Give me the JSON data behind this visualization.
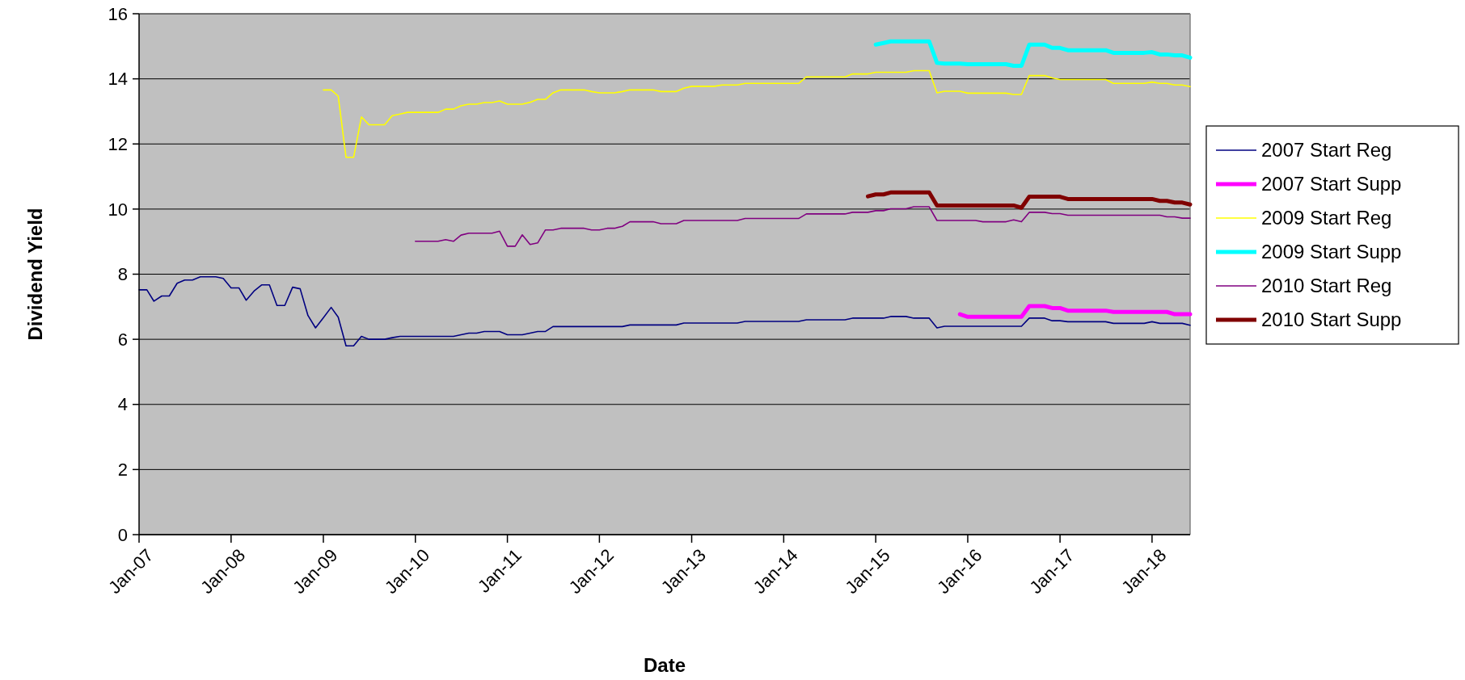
{
  "chart_data": {
    "type": "line",
    "xlabel": "Date",
    "ylabel": "Dividend Yield",
    "x": [
      "2007-01",
      "2007-02",
      "2007-03",
      "2007-04",
      "2007-05",
      "2007-06",
      "2007-07",
      "2007-08",
      "2007-09",
      "2007-10",
      "2007-11",
      "2007-12",
      "2008-01",
      "2008-02",
      "2008-03",
      "2008-04",
      "2008-05",
      "2008-06",
      "2008-07",
      "2008-08",
      "2008-09",
      "2008-10",
      "2008-11",
      "2008-12",
      "2009-01",
      "2009-02",
      "2009-03",
      "2009-04",
      "2009-05",
      "2009-06",
      "2009-07",
      "2009-08",
      "2009-09",
      "2009-10",
      "2009-11",
      "2009-12",
      "2010-01",
      "2010-02",
      "2010-03",
      "2010-04",
      "2010-05",
      "2010-06",
      "2010-07",
      "2010-08",
      "2010-09",
      "2010-10",
      "2010-11",
      "2010-12",
      "2011-01",
      "2011-02",
      "2011-03",
      "2011-04",
      "2011-05",
      "2011-06",
      "2011-07",
      "2011-08",
      "2011-09",
      "2011-10",
      "2011-11",
      "2011-12",
      "2012-01",
      "2012-02",
      "2012-03",
      "2012-04",
      "2012-05",
      "2012-06",
      "2012-07",
      "2012-08",
      "2012-09",
      "2012-10",
      "2012-11",
      "2012-12",
      "2013-01",
      "2013-02",
      "2013-03",
      "2013-04",
      "2013-05",
      "2013-06",
      "2013-07",
      "2013-08",
      "2013-09",
      "2013-10",
      "2013-11",
      "2013-12",
      "2014-01",
      "2014-02",
      "2014-03",
      "2014-04",
      "2014-05",
      "2014-06",
      "2014-07",
      "2014-08",
      "2014-09",
      "2014-10",
      "2014-11",
      "2014-12",
      "2015-01",
      "2015-02",
      "2015-03",
      "2015-04",
      "2015-05",
      "2015-06",
      "2015-07",
      "2015-08",
      "2015-09",
      "2015-10",
      "2015-11",
      "2015-12",
      "2016-01",
      "2016-02",
      "2016-03",
      "2016-04",
      "2016-05",
      "2016-06",
      "2016-07",
      "2016-08",
      "2016-09",
      "2016-10",
      "2016-11",
      "2016-12",
      "2017-01",
      "2017-02",
      "2017-03",
      "2017-04",
      "2017-05",
      "2017-06",
      "2017-07",
      "2017-08",
      "2017-09",
      "2017-10",
      "2017-11",
      "2017-12",
      "2018-01",
      "2018-02",
      "2018-03",
      "2018-04",
      "2018-05",
      "2018-06"
    ],
    "series": [
      {
        "name": "2007 Start Reg",
        "color": "#000080",
        "values": [
          7.52,
          7.52,
          7.17,
          7.33,
          7.33,
          7.72,
          7.82,
          7.82,
          7.92,
          7.92,
          7.92,
          7.87,
          7.58,
          7.58,
          7.2,
          7.48,
          7.67,
          7.67,
          7.04,
          7.04,
          7.6,
          7.55,
          6.73,
          6.35,
          6.66,
          6.98,
          6.68,
          5.8,
          5.8,
          6.09,
          6.0,
          6.0,
          6.0,
          6.05,
          6.09,
          6.09,
          6.09,
          6.09,
          6.09,
          6.09,
          6.09,
          6.09,
          6.14,
          6.19,
          6.19,
          6.24,
          6.24,
          6.24,
          6.14,
          6.14,
          6.14,
          6.19,
          6.24,
          6.24,
          6.39,
          6.39,
          6.39,
          6.39,
          6.39,
          6.39,
          6.39,
          6.39,
          6.39,
          6.39,
          6.44,
          6.44,
          6.44,
          6.44,
          6.44,
          6.44,
          6.44,
          6.5,
          6.5,
          6.5,
          6.5,
          6.5,
          6.5,
          6.5,
          6.5,
          6.55,
          6.55,
          6.55,
          6.55,
          6.55,
          6.55,
          6.55,
          6.55,
          6.6,
          6.6,
          6.6,
          6.6,
          6.6,
          6.6,
          6.65,
          6.65,
          6.65,
          6.65,
          6.65,
          6.7,
          6.7,
          6.7,
          6.65,
          6.65,
          6.65,
          6.35,
          6.4,
          6.4,
          6.4,
          6.4,
          6.4,
          6.4,
          6.4,
          6.4,
          6.4,
          6.4,
          6.4,
          6.65,
          6.65,
          6.65,
          6.57,
          6.57,
          6.54,
          6.54,
          6.54,
          6.54,
          6.54,
          6.54,
          6.49,
          6.49,
          6.49,
          6.49,
          6.49,
          6.54,
          6.49,
          6.49,
          6.49,
          6.49,
          6.43
        ]
      },
      {
        "name": "2007 Start Supp",
        "color": "#ff00ff",
        "values": [
          null,
          null,
          null,
          null,
          null,
          null,
          null,
          null,
          null,
          null,
          null,
          null,
          null,
          null,
          null,
          null,
          null,
          null,
          null,
          null,
          null,
          null,
          null,
          null,
          null,
          null,
          null,
          null,
          null,
          null,
          null,
          null,
          null,
          null,
          null,
          null,
          null,
          null,
          null,
          null,
          null,
          null,
          null,
          null,
          null,
          null,
          null,
          null,
          null,
          null,
          null,
          null,
          null,
          null,
          null,
          null,
          null,
          null,
          null,
          null,
          null,
          null,
          null,
          null,
          null,
          null,
          null,
          null,
          null,
          null,
          null,
          null,
          null,
          null,
          null,
          null,
          null,
          null,
          null,
          null,
          null,
          null,
          null,
          null,
          null,
          null,
          null,
          null,
          null,
          null,
          null,
          null,
          null,
          null,
          null,
          null,
          null,
          null,
          null,
          null,
          null,
          null,
          null,
          null,
          null,
          null,
          null,
          6.77,
          6.69,
          6.69,
          6.69,
          6.69,
          6.69,
          6.69,
          6.69,
          6.69,
          7.02,
          7.02,
          7.02,
          6.96,
          6.96,
          6.88,
          6.88,
          6.88,
          6.88,
          6.88,
          6.88,
          6.84,
          6.84,
          6.84,
          6.84,
          6.84,
          6.84,
          6.84,
          6.84,
          6.77,
          6.77,
          6.77
        ]
      },
      {
        "name": "2009 Start Reg",
        "color": "#ffff00",
        "values": [
          null,
          null,
          null,
          null,
          null,
          null,
          null,
          null,
          null,
          null,
          null,
          null,
          null,
          null,
          null,
          null,
          null,
          null,
          null,
          null,
          null,
          null,
          null,
          null,
          13.66,
          13.66,
          13.47,
          11.59,
          11.59,
          12.83,
          12.59,
          12.59,
          12.59,
          12.87,
          12.92,
          12.97,
          12.97,
          12.97,
          12.97,
          12.97,
          13.07,
          13.07,
          13.17,
          13.22,
          13.22,
          13.27,
          13.27,
          13.32,
          13.22,
          13.22,
          13.22,
          13.28,
          13.37,
          13.37,
          13.57,
          13.66,
          13.66,
          13.66,
          13.66,
          13.61,
          13.57,
          13.57,
          13.57,
          13.61,
          13.66,
          13.66,
          13.66,
          13.66,
          13.61,
          13.61,
          13.61,
          13.71,
          13.77,
          13.77,
          13.77,
          13.77,
          13.81,
          13.81,
          13.81,
          13.86,
          13.86,
          13.86,
          13.86,
          13.86,
          13.86,
          13.86,
          13.86,
          14.06,
          14.06,
          14.06,
          14.06,
          14.06,
          14.06,
          14.15,
          14.15,
          14.15,
          14.2,
          14.2,
          14.2,
          14.2,
          14.2,
          14.25,
          14.25,
          14.25,
          13.57,
          13.62,
          13.62,
          13.62,
          13.56,
          13.56,
          13.56,
          13.56,
          13.56,
          13.56,
          13.52,
          13.52,
          14.1,
          14.1,
          14.1,
          14.03,
          13.98,
          13.98,
          13.98,
          13.98,
          13.98,
          13.98,
          13.98,
          13.86,
          13.86,
          13.86,
          13.86,
          13.86,
          13.9,
          13.86,
          13.86,
          13.81,
          13.81,
          13.76
        ]
      },
      {
        "name": "2009 Start Supp",
        "color": "#00ffff",
        "values": [
          null,
          null,
          null,
          null,
          null,
          null,
          null,
          null,
          null,
          null,
          null,
          null,
          null,
          null,
          null,
          null,
          null,
          null,
          null,
          null,
          null,
          null,
          null,
          null,
          null,
          null,
          null,
          null,
          null,
          null,
          null,
          null,
          null,
          null,
          null,
          null,
          null,
          null,
          null,
          null,
          null,
          null,
          null,
          null,
          null,
          null,
          null,
          null,
          null,
          null,
          null,
          null,
          null,
          null,
          null,
          null,
          null,
          null,
          null,
          null,
          null,
          null,
          null,
          null,
          null,
          null,
          null,
          null,
          null,
          null,
          null,
          null,
          null,
          null,
          null,
          null,
          null,
          null,
          null,
          null,
          null,
          null,
          null,
          null,
          null,
          null,
          null,
          null,
          null,
          null,
          null,
          null,
          null,
          null,
          null,
          null,
          15.05,
          15.1,
          15.15,
          15.15,
          15.15,
          15.15,
          15.15,
          15.15,
          14.49,
          14.47,
          14.47,
          14.47,
          14.45,
          14.45,
          14.45,
          14.45,
          14.45,
          14.45,
          14.4,
          14.4,
          15.05,
          15.05,
          15.05,
          14.95,
          14.95,
          14.88,
          14.88,
          14.88,
          14.88,
          14.88,
          14.88,
          14.8,
          14.8,
          14.8,
          14.8,
          14.8,
          14.82,
          14.75,
          14.75,
          14.72,
          14.72,
          14.65
        ]
      },
      {
        "name": "2010 Start Reg",
        "color": "#800080",
        "values": [
          null,
          null,
          null,
          null,
          null,
          null,
          null,
          null,
          null,
          null,
          null,
          null,
          null,
          null,
          null,
          null,
          null,
          null,
          null,
          null,
          null,
          null,
          null,
          null,
          null,
          null,
          null,
          null,
          null,
          null,
          null,
          null,
          null,
          null,
          null,
          null,
          9.01,
          9.01,
          9.01,
          9.01,
          9.06,
          9.01,
          9.2,
          9.26,
          9.26,
          9.26,
          9.26,
          9.32,
          8.86,
          8.86,
          9.21,
          8.91,
          8.96,
          9.36,
          9.36,
          9.41,
          9.41,
          9.41,
          9.41,
          9.36,
          9.36,
          9.41,
          9.41,
          9.47,
          9.61,
          9.61,
          9.61,
          9.61,
          9.55,
          9.55,
          9.55,
          9.65,
          9.65,
          9.65,
          9.65,
          9.65,
          9.65,
          9.65,
          9.65,
          9.71,
          9.71,
          9.71,
          9.71,
          9.71,
          9.71,
          9.71,
          9.71,
          9.85,
          9.85,
          9.85,
          9.85,
          9.85,
          9.85,
          9.9,
          9.9,
          9.9,
          9.95,
          9.95,
          10.01,
          10.01,
          10.01,
          10.07,
          10.07,
          10.07,
          9.65,
          9.65,
          9.65,
          9.65,
          9.65,
          9.65,
          9.61,
          9.61,
          9.61,
          9.61,
          9.67,
          9.61,
          9.9,
          9.9,
          9.9,
          9.86,
          9.86,
          9.81,
          9.81,
          9.81,
          9.81,
          9.81,
          9.81,
          9.81,
          9.81,
          9.81,
          9.81,
          9.81,
          9.81,
          9.81,
          9.76,
          9.76,
          9.72,
          9.72
        ]
      },
      {
        "name": "2010 Start Supp",
        "color": "#800000",
        "values": [
          null,
          null,
          null,
          null,
          null,
          null,
          null,
          null,
          null,
          null,
          null,
          null,
          null,
          null,
          null,
          null,
          null,
          null,
          null,
          null,
          null,
          null,
          null,
          null,
          null,
          null,
          null,
          null,
          null,
          null,
          null,
          null,
          null,
          null,
          null,
          null,
          null,
          null,
          null,
          null,
          null,
          null,
          null,
          null,
          null,
          null,
          null,
          null,
          null,
          null,
          null,
          null,
          null,
          null,
          null,
          null,
          null,
          null,
          null,
          null,
          null,
          null,
          null,
          null,
          null,
          null,
          null,
          null,
          null,
          null,
          null,
          null,
          null,
          null,
          null,
          null,
          null,
          null,
          null,
          null,
          null,
          null,
          null,
          null,
          null,
          null,
          null,
          null,
          null,
          null,
          null,
          null,
          null,
          null,
          null,
          10.39,
          10.45,
          10.45,
          10.51,
          10.51,
          10.51,
          10.51,
          10.51,
          10.51,
          10.11,
          10.11,
          10.11,
          10.11,
          10.11,
          10.11,
          10.11,
          10.11,
          10.11,
          10.11,
          10.11,
          10.04,
          10.38,
          10.38,
          10.38,
          10.38,
          10.38,
          10.31,
          10.31,
          10.31,
          10.31,
          10.31,
          10.31,
          10.31,
          10.31,
          10.31,
          10.31,
          10.31,
          10.31,
          10.25,
          10.25,
          10.2,
          10.2,
          10.14
        ]
      }
    ],
    "xlim": [
      "2007-01",
      "2018-06"
    ],
    "xticks": [
      {
        "value": "2007-01",
        "label": "Jan-07"
      },
      {
        "value": "2008-01",
        "label": "Jan-08"
      },
      {
        "value": "2009-01",
        "label": "Jan-09"
      },
      {
        "value": "2010-01",
        "label": "Jan-10"
      },
      {
        "value": "2011-01",
        "label": "Jan-11"
      },
      {
        "value": "2012-01",
        "label": "Jan-12"
      },
      {
        "value": "2013-01",
        "label": "Jan-13"
      },
      {
        "value": "2014-01",
        "label": "Jan-14"
      },
      {
        "value": "2015-01",
        "label": "Jan-15"
      },
      {
        "value": "2016-01",
        "label": "Jan-16"
      },
      {
        "value": "2017-01",
        "label": "Jan-17"
      },
      {
        "value": "2018-01",
        "label": "Jan-18"
      }
    ],
    "ylim": [
      0,
      16
    ],
    "yticks": [
      0,
      2,
      4,
      6,
      8,
      10,
      12,
      14,
      16
    ],
    "grid": "y",
    "legend": "right",
    "marker": "none",
    "line_style": "solid"
  }
}
